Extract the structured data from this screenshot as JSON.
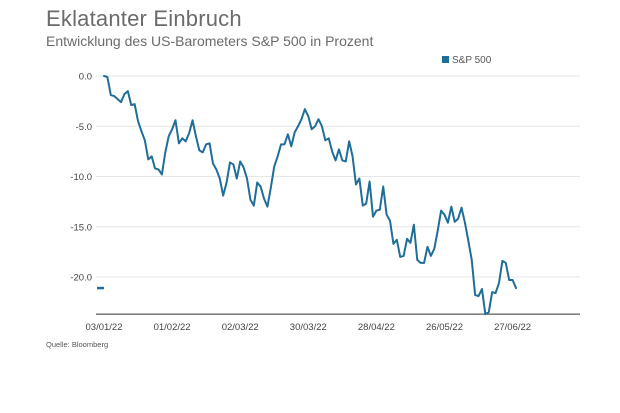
{
  "chart_data": {
    "type": "line",
    "title": "Eklatanter Einbruch",
    "subtitle": "Entwicklung des US-Barometers S&P 500 in Prozent",
    "source": "Quelle: Bloomberg",
    "legend_position": "top-right",
    "grid": true,
    "ylim": [
      -23.7,
      0
    ],
    "yticks": [
      "0.0",
      "-5.0",
      "-10.0",
      "-15.0",
      "-20.0"
    ],
    "ytick_values": [
      0,
      -5,
      -10,
      -15,
      -20
    ],
    "xticks": [
      "03/01/22",
      "01/02/22",
      "02/03/22",
      "30/03/22",
      "28/04/22",
      "26/05/22",
      "27/06/22"
    ],
    "xtick_indices": [
      0,
      20,
      40,
      60,
      80,
      100,
      120
    ],
    "last_value_marker": -21.1,
    "series": [
      {
        "name": "S&P 500",
        "color": "#1f6e99",
        "values": [
          0,
          -0.1,
          -1.9,
          -2.0,
          -2.3,
          -2.6,
          -1.8,
          -1.5,
          -2.9,
          -2.8,
          -4.5,
          -5.5,
          -6.4,
          -8.3,
          -8.0,
          -9.2,
          -9.3,
          -9.8,
          -7.6,
          -6.0,
          -5.3,
          -4.4,
          -6.7,
          -6.2,
          -6.5,
          -5.7,
          -4.4,
          -6.0,
          -7.4,
          -7.6,
          -6.8,
          -6.7,
          -8.7,
          -9.3,
          -10.2,
          -11.9,
          -10.6,
          -8.6,
          -8.8,
          -10.2,
          -8.5,
          -9.1,
          -10.2,
          -12.3,
          -12.9,
          -10.6,
          -11.0,
          -12.2,
          -13.0,
          -11.1,
          -9.0,
          -8.0,
          -6.8,
          -6.8,
          -5.8,
          -7.0,
          -5.6,
          -5.0,
          -4.3,
          -3.3,
          -4.0,
          -5.3,
          -5.0,
          -4.3,
          -5.0,
          -6.4,
          -6.2,
          -7.5,
          -8.4,
          -7.3,
          -8.4,
          -8.5,
          -6.5,
          -8.0,
          -10.8,
          -10.2,
          -12.9,
          -12.7,
          -10.5,
          -14.0,
          -13.4,
          -13.3,
          -11.0,
          -13.8,
          -14.4,
          -16.7,
          -16.3,
          -18.0,
          -17.9,
          -16.2,
          -16.6,
          -14.8,
          -18.3,
          -18.6,
          -18.6,
          -17.0,
          -17.9,
          -17.2,
          -15.4,
          -13.4,
          -13.8,
          -14.6,
          -13.0,
          -14.5,
          -14.2,
          -13.1,
          -14.6,
          -16.4,
          -18.3,
          -21.8,
          -21.9,
          -21.2,
          -23.7,
          -23.5,
          -21.5,
          -21.6,
          -20.6,
          -18.4,
          -18.6,
          -20.3,
          -20.3,
          -21.1
        ]
      }
    ]
  }
}
